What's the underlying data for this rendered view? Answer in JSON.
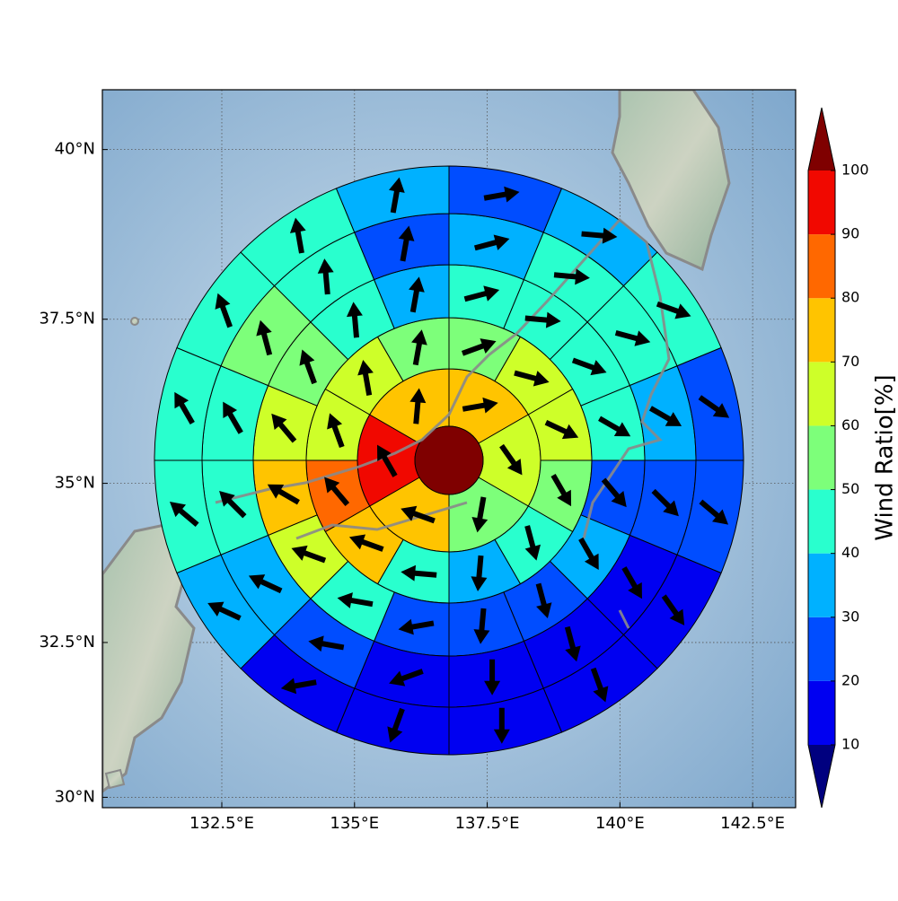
{
  "chart_data": {
    "type": "polar",
    "projection": "mercator",
    "xlim": [
      130.25,
      143.31
    ],
    "ylim": [
      29.83,
      40.86
    ],
    "xticks": [
      {
        "value": 132.5,
        "label": "132.5°E"
      },
      {
        "value": 135,
        "label": "135°E"
      },
      {
        "value": 137.5,
        "label": "137.5°E"
      },
      {
        "value": 140,
        "label": "140°E"
      },
      {
        "value": 142.5,
        "label": "142.5°E"
      }
    ],
    "yticks": [
      {
        "value": 30,
        "label": "30°N"
      },
      {
        "value": 32.5,
        "label": "32.5°N"
      },
      {
        "value": 35,
        "label": "35°N"
      },
      {
        "value": 37.5,
        "label": "37.5°N"
      },
      {
        "value": 40,
        "label": "40°N"
      }
    ],
    "grid": true,
    "center_value": 100,
    "rings": [
      {
        "values": [
          75,
          65,
          55,
          75,
          95,
          75
        ],
        "directions": [
          80,
          145,
          190,
          290,
          330,
          5
        ]
      },
      {
        "values": [
          55,
          65,
          65,
          55,
          45,
          35,
          45,
          75,
          85,
          65,
          65,
          55
        ],
        "directions": [
          70,
          105,
          115,
          150,
          165,
          185,
          275,
          290,
          320,
          340,
          350,
          10
        ]
      },
      {
        "values": [
          45,
          45,
          45,
          45,
          25,
          35,
          25,
          25,
          25,
          45,
          65,
          75,
          65,
          55,
          45,
          35
        ],
        "directions": [
          75,
          95,
          110,
          120,
          140,
          150,
          165,
          185,
          260,
          280,
          290,
          300,
          320,
          340,
          355,
          10
        ]
      },
      {
        "values": [
          35,
          45,
          45,
          35,
          25,
          15,
          15,
          15,
          15,
          25,
          35,
          45,
          45,
          55,
          45,
          25
        ],
        "directions": [
          75,
          95,
          105,
          120,
          135,
          150,
          165,
          180,
          250,
          280,
          295,
          315,
          330,
          345,
          355,
          10
        ]
      },
      {
        "values": [
          25,
          35,
          45,
          25,
          25,
          15,
          15,
          15,
          15,
          15,
          35,
          45,
          45,
          45,
          45,
          35
        ],
        "directions": [
          80,
          95,
          110,
          125,
          130,
          145,
          160,
          180,
          200,
          260,
          295,
          310,
          330,
          340,
          350,
          10
        ]
      }
    ],
    "colorbar": {
      "label": "Wind Ratio[%]",
      "ticks": [
        10,
        20,
        30,
        40,
        50,
        60,
        70,
        80,
        90,
        100
      ],
      "colors": [
        "#00007f",
        "#0000f1",
        "#004dff",
        "#00b1ff",
        "#29ffce",
        "#7dff7a",
        "#ceff29",
        "#ffc400",
        "#ff6800",
        "#f10800",
        "#7f0000"
      ],
      "extend": "both"
    }
  }
}
